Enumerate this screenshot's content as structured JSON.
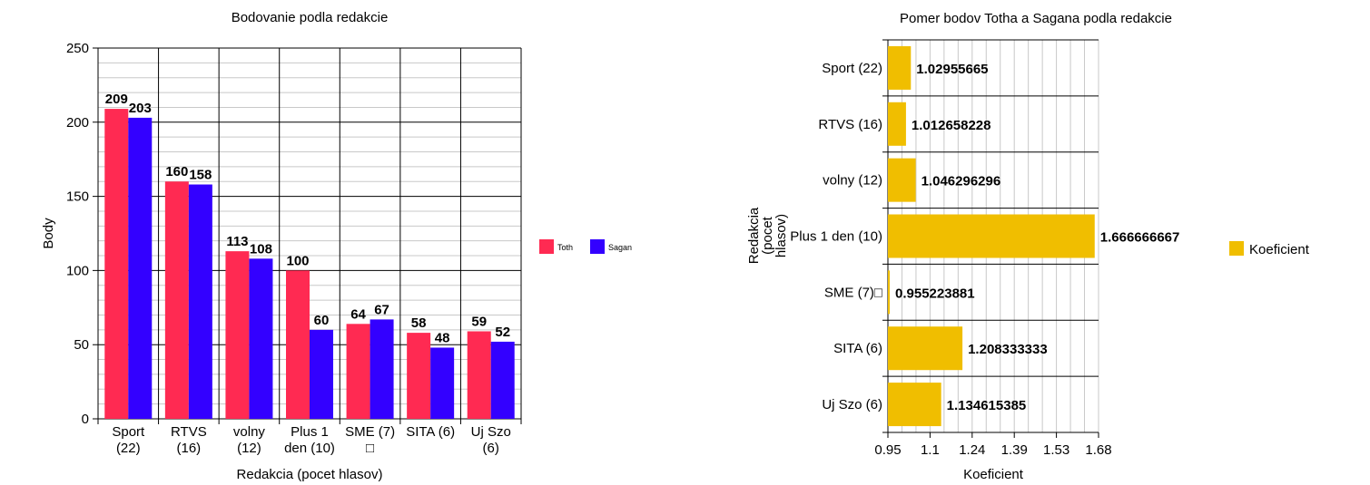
{
  "charts": [
    {
      "type": "bar",
      "title": "Bodovanie podla redakcie",
      "xlabel": "Redakcia (pocet hlasov)",
      "ylabel": "Body",
      "ylim": [
        0,
        250
      ],
      "yticks": [
        0,
        50,
        100,
        150,
        200,
        250
      ],
      "categories": [
        [
          "Sport",
          "(22)"
        ],
        [
          "RTVS",
          "(16)"
        ],
        [
          "volny",
          "(12)"
        ],
        [
          "Plus 1",
          "den (10)"
        ],
        [
          "SME (7)",
          "□"
        ],
        [
          "SITA (6)"
        ],
        [
          "Uj Szo",
          "(6)"
        ]
      ],
      "series": [
        {
          "name": "Toth",
          "color": "#ff2a52",
          "values": [
            209,
            160,
            113,
            100,
            64,
            58,
            59
          ]
        },
        {
          "name": "Sagan",
          "color": "#3300ff",
          "values": [
            203,
            158,
            108,
            60,
            67,
            48,
            52
          ]
        }
      ],
      "legend_position": "right",
      "grid": true
    },
    {
      "type": "bar",
      "orientation": "horizontal",
      "title": "Pomer bodov Totha a Sagana podla redakcie",
      "xlabel": "Koeficient",
      "ylabel": [
        "Redakcia",
        "(pocet",
        "hlasov)"
      ],
      "xlim": [
        0.95,
        1.68
      ],
      "xticks": [
        "0.95",
        "1.1",
        "1.24",
        "1.39",
        "1.53",
        "1.68"
      ],
      "categories": [
        "Sport (22)",
        "RTVS (16)",
        "volny (12)",
        "Plus 1 den (10)",
        "SME (7)□",
        "SITA (6)",
        "Uj Szo (6)"
      ],
      "series": [
        {
          "name": "Koeficient",
          "color": "#f0be00",
          "values": [
            1.02955665,
            1.012658228,
            1.046296296,
            1.666666667,
            0.955223881,
            1.208333333,
            1.134615385
          ]
        }
      ],
      "value_labels": [
        "1.02955665",
        "1.012658228",
        "1.046296296",
        "1.666666667",
        "0.955223881",
        "1.208333333",
        "1.134615385"
      ],
      "legend_position": "right",
      "grid": true
    }
  ]
}
